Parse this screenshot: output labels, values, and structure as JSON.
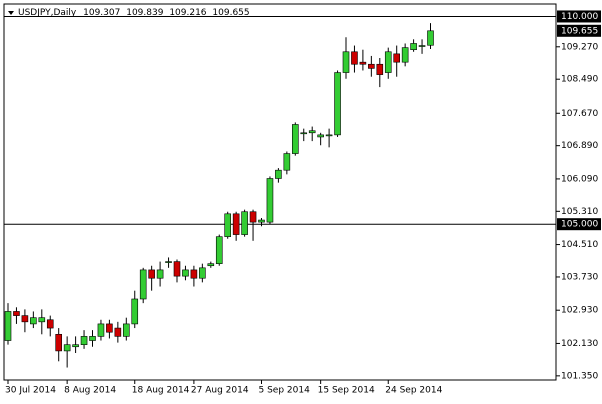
{
  "chart_data": {
    "type": "candlestick",
    "title": "USDJPY,Daily",
    "categories": [
      "30 Jul 2014",
      null,
      null,
      null,
      null,
      null,
      null,
      "8 Aug 2014",
      null,
      null,
      null,
      null,
      null,
      null,
      null,
      "18 Aug 2014",
      null,
      null,
      null,
      null,
      null,
      null,
      "27 Aug 2014",
      null,
      null,
      null,
      null,
      null,
      null,
      null,
      "5 Sep 2014",
      null,
      null,
      null,
      null,
      null,
      null,
      "15 Sep 2014",
      null,
      null,
      null,
      null,
      null,
      null,
      null,
      "24 Sep 2014",
      null,
      null,
      null,
      null,
      null
    ],
    "open": [
      102.2,
      102.9,
      102.8,
      102.6,
      102.65,
      102.7,
      102.35,
      101.95,
      102.05,
      102.1,
      102.2,
      102.3,
      102.6,
      102.5,
      102.3,
      102.6,
      103.2,
      103.9,
      103.7,
      104.1,
      104.1,
      103.75,
      103.9,
      103.7,
      104.0,
      104.05,
      104.7,
      105.25,
      104.75,
      105.3,
      105.05,
      105.05,
      106.1,
      106.3,
      106.7,
      107.2,
      107.2,
      107.1,
      107.15,
      107.15,
      108.65,
      109.15,
      108.9,
      108.85,
      108.85,
      108.65,
      109.1,
      108.9,
      109.2,
      109.3,
      109.307
    ],
    "high": [
      103.1,
      103.0,
      102.95,
      102.9,
      102.95,
      102.8,
      102.5,
      102.3,
      102.3,
      102.45,
      102.45,
      102.7,
      102.7,
      102.65,
      102.75,
      103.4,
      103.95,
      104.0,
      104.1,
      104.2,
      104.15,
      104.0,
      104.0,
      104.05,
      104.1,
      104.75,
      105.3,
      105.3,
      105.35,
      105.35,
      105.15,
      106.15,
      106.35,
      106.75,
      107.45,
      107.3,
      107.35,
      107.2,
      107.3,
      108.7,
      109.5,
      109.3,
      109.2,
      109.05,
      109.0,
      109.25,
      109.3,
      109.35,
      109.45,
      109.45,
      109.839
    ],
    "low": [
      102.1,
      102.6,
      102.4,
      102.5,
      102.35,
      102.3,
      101.7,
      101.55,
      101.9,
      102.0,
      102.05,
      102.2,
      102.25,
      102.15,
      102.2,
      102.5,
      103.1,
      103.4,
      103.5,
      103.95,
      103.6,
      103.65,
      103.5,
      103.6,
      103.95,
      104.0,
      104.65,
      104.6,
      104.7,
      104.6,
      104.95,
      105.0,
      106.0,
      106.2,
      106.65,
      107.0,
      107.0,
      106.9,
      106.85,
      107.1,
      108.5,
      108.65,
      108.7,
      108.55,
      108.3,
      108.5,
      108.55,
      108.8,
      109.15,
      109.1,
      109.216
    ],
    "close": [
      102.9,
      102.8,
      102.65,
      102.75,
      102.75,
      102.5,
      101.95,
      102.1,
      102.1,
      102.3,
      102.3,
      102.6,
      102.4,
      102.3,
      102.6,
      103.2,
      103.9,
      103.7,
      103.9,
      104.1,
      103.75,
      103.9,
      103.7,
      103.95,
      104.05,
      104.7,
      105.25,
      104.75,
      105.3,
      105.05,
      105.1,
      106.1,
      106.3,
      106.7,
      107.4,
      107.2,
      107.25,
      107.15,
      107.15,
      108.65,
      109.15,
      108.85,
      108.85,
      108.75,
      108.6,
      109.15,
      108.9,
      109.25,
      109.35,
      109.3,
      109.655
    ],
    "up_color": "#33cc33",
    "down_color": "#cc0000",
    "ylim": [
      101.25,
      110.3
    ],
    "yticks": [
      {
        "value": 109.27,
        "label": "109.270"
      },
      {
        "value": 108.49,
        "label": "108.490"
      },
      {
        "value": 107.67,
        "label": "107.670"
      },
      {
        "value": 106.89,
        "label": "106.890"
      },
      {
        "value": 106.09,
        "label": "106.090"
      },
      {
        "value": 105.31,
        "label": "105.310"
      },
      {
        "value": 104.51,
        "label": "104.510"
      },
      {
        "value": 103.73,
        "label": "103.730"
      },
      {
        "value": 102.93,
        "label": "102.930"
      },
      {
        "value": 102.13,
        "label": "102.130"
      },
      {
        "value": 101.35,
        "label": "101.350"
      }
    ],
    "levels": [
      {
        "value": 110,
        "label": "110.000"
      },
      {
        "value": 105,
        "label": "105.000"
      }
    ],
    "price_label": {
      "value": 109.655,
      "label": "109.655"
    }
  }
}
